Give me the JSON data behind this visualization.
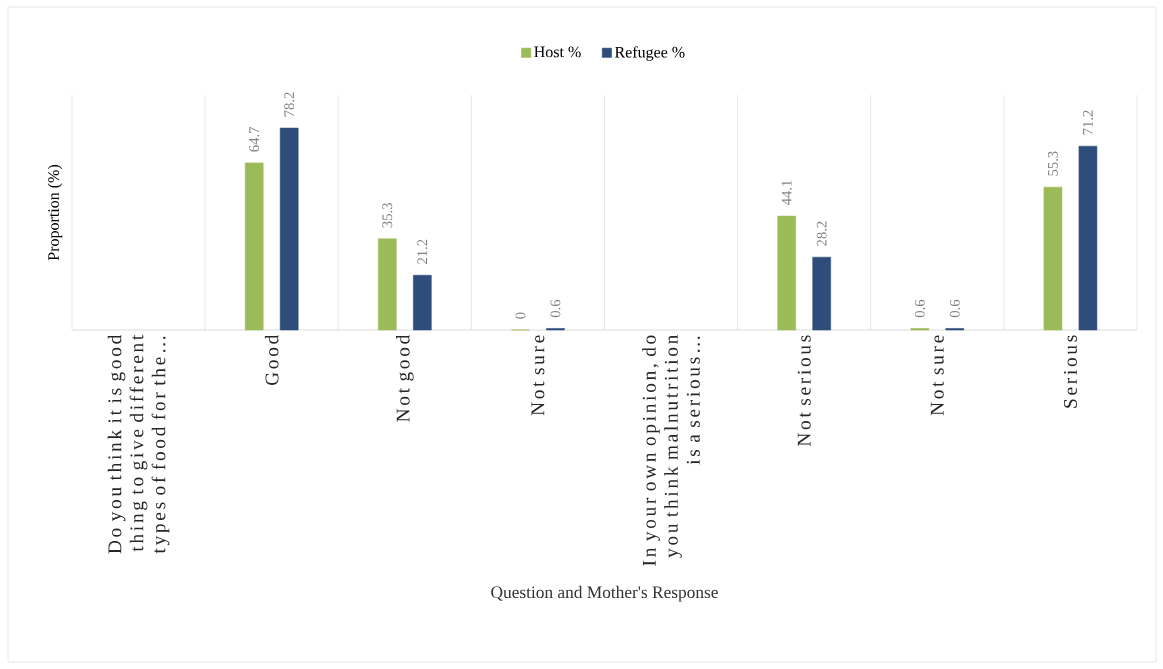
{
  "chart_data": {
    "type": "bar",
    "xlabel": "Question and Mother's Response",
    "ylabel": "Proportion (%)",
    "categories": [
      "Do you think it is good thing to give different types of food for the…",
      "Good",
      "Not good",
      "Not sure",
      "In your own opinion, do you think malnutrition is a serious…",
      "Not serious",
      "Not sure",
      "Serious"
    ],
    "series": [
      {
        "name": "Host %",
        "color": "#9bbb59",
        "values": [
          null,
          64.7,
          35.3,
          0,
          null,
          44.1,
          0.6,
          55.3
        ]
      },
      {
        "name": "Refugee %",
        "color": "#2e4d7b",
        "values": [
          null,
          78.2,
          21.2,
          0.6,
          null,
          28.2,
          0.6,
          71.2
        ]
      }
    ],
    "ylim": [
      0,
      91
    ],
    "data_labels": true,
    "grid": "x",
    "legend": "top"
  }
}
